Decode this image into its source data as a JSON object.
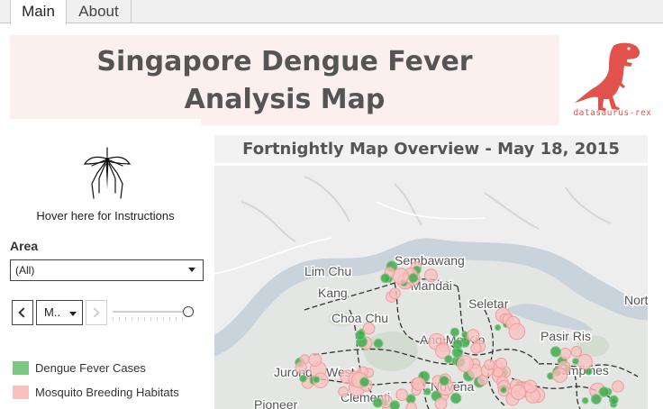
{
  "tabs": {
    "main": "Main",
    "about": "About"
  },
  "header": {
    "title_line1": "Singapore Dengue Fever",
    "title_line2": "Analysis Map",
    "logo_text": "datasaurus-rex",
    "logo_icon": "t-rex-icon"
  },
  "panel": {
    "instructions_icon": "mosquito-icon",
    "instructions_text": "Hover here for Instructions",
    "area_label": "Area",
    "area_value": "(All)",
    "month_value": "M..",
    "legend": [
      {
        "label": "Dengue Fever Cases",
        "color": "#7cc883"
      },
      {
        "label": "Mosquito Breeding Habitats",
        "color": "#f9c0c0"
      }
    ]
  },
  "map": {
    "title": "Fortnightly Map Overview - May 18, 2015",
    "place_labels": [
      "Sembawang",
      "Mandai",
      "Lim Chu",
      "Kang",
      "Seletar",
      "Nort",
      "Choa Chu",
      "Ang Mo Kio",
      "Pasir Ris",
      "Tampines",
      "Jurong",
      "West",
      "Clementi",
      "Novena",
      "Pioneer"
    ]
  }
}
